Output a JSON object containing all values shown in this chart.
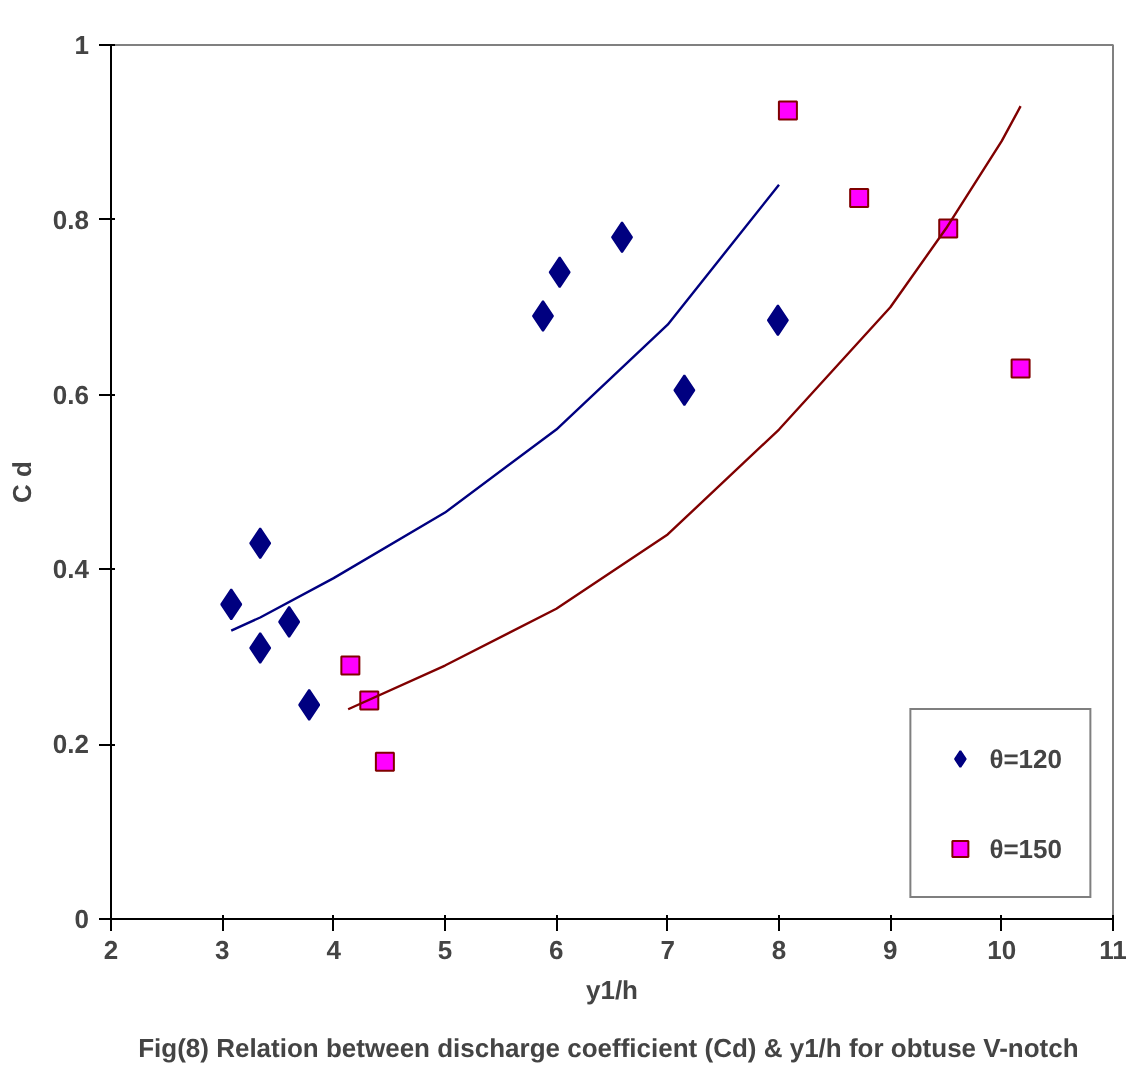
{
  "chart_data": {
    "type": "scatter",
    "xlabel": "y1/h",
    "ylabel": "C d",
    "xlim": [
      2,
      11
    ],
    "ylim": [
      0,
      1
    ],
    "xticks": [
      2,
      3,
      4,
      5,
      6,
      7,
      8,
      9,
      10,
      11
    ],
    "yticks": [
      0,
      0.2,
      0.4,
      0.6,
      0.8,
      1
    ],
    "grid": false,
    "legend": "bottom right",
    "annotations": [
      "Fig(8)  Relation between discharge coefficient (Cd) & y1/h for obtuse V-notch"
    ],
    "series": [
      {
        "name": "θ=120",
        "marker": "diamond",
        "color": "#000080",
        "x": [
          3.08,
          3.34,
          3.34,
          3.6,
          3.78,
          5.88,
          6.03,
          6.59,
          7.15,
          7.99
        ],
        "values": [
          0.36,
          0.31,
          0.43,
          0.34,
          0.245,
          0.69,
          0.74,
          0.78,
          0.605,
          0.685
        ]
      },
      {
        "name": "θ=150",
        "marker": "square",
        "color": "#ff00ff",
        "x": [
          4.15,
          4.32,
          4.46,
          8.08,
          8.72,
          9.52,
          10.17
        ],
        "values": [
          0.29,
          0.25,
          0.18,
          0.925,
          0.825,
          0.79,
          0.63
        ]
      },
      {
        "type": "line",
        "color": "#000080",
        "x": [
          3.08,
          3.34,
          4,
          5,
          6,
          7,
          8
        ],
        "values": [
          0.33,
          0.345,
          0.39,
          0.465,
          0.56,
          0.68,
          0.84
        ]
      },
      {
        "type": "line",
        "color": "#800000",
        "x": [
          4.13,
          5,
          6,
          7,
          8,
          9,
          9.5,
          10,
          10.17
        ],
        "values": [
          0.24,
          0.29,
          0.355,
          0.44,
          0.56,
          0.7,
          0.79,
          0.89,
          0.93
        ]
      }
    ]
  }
}
